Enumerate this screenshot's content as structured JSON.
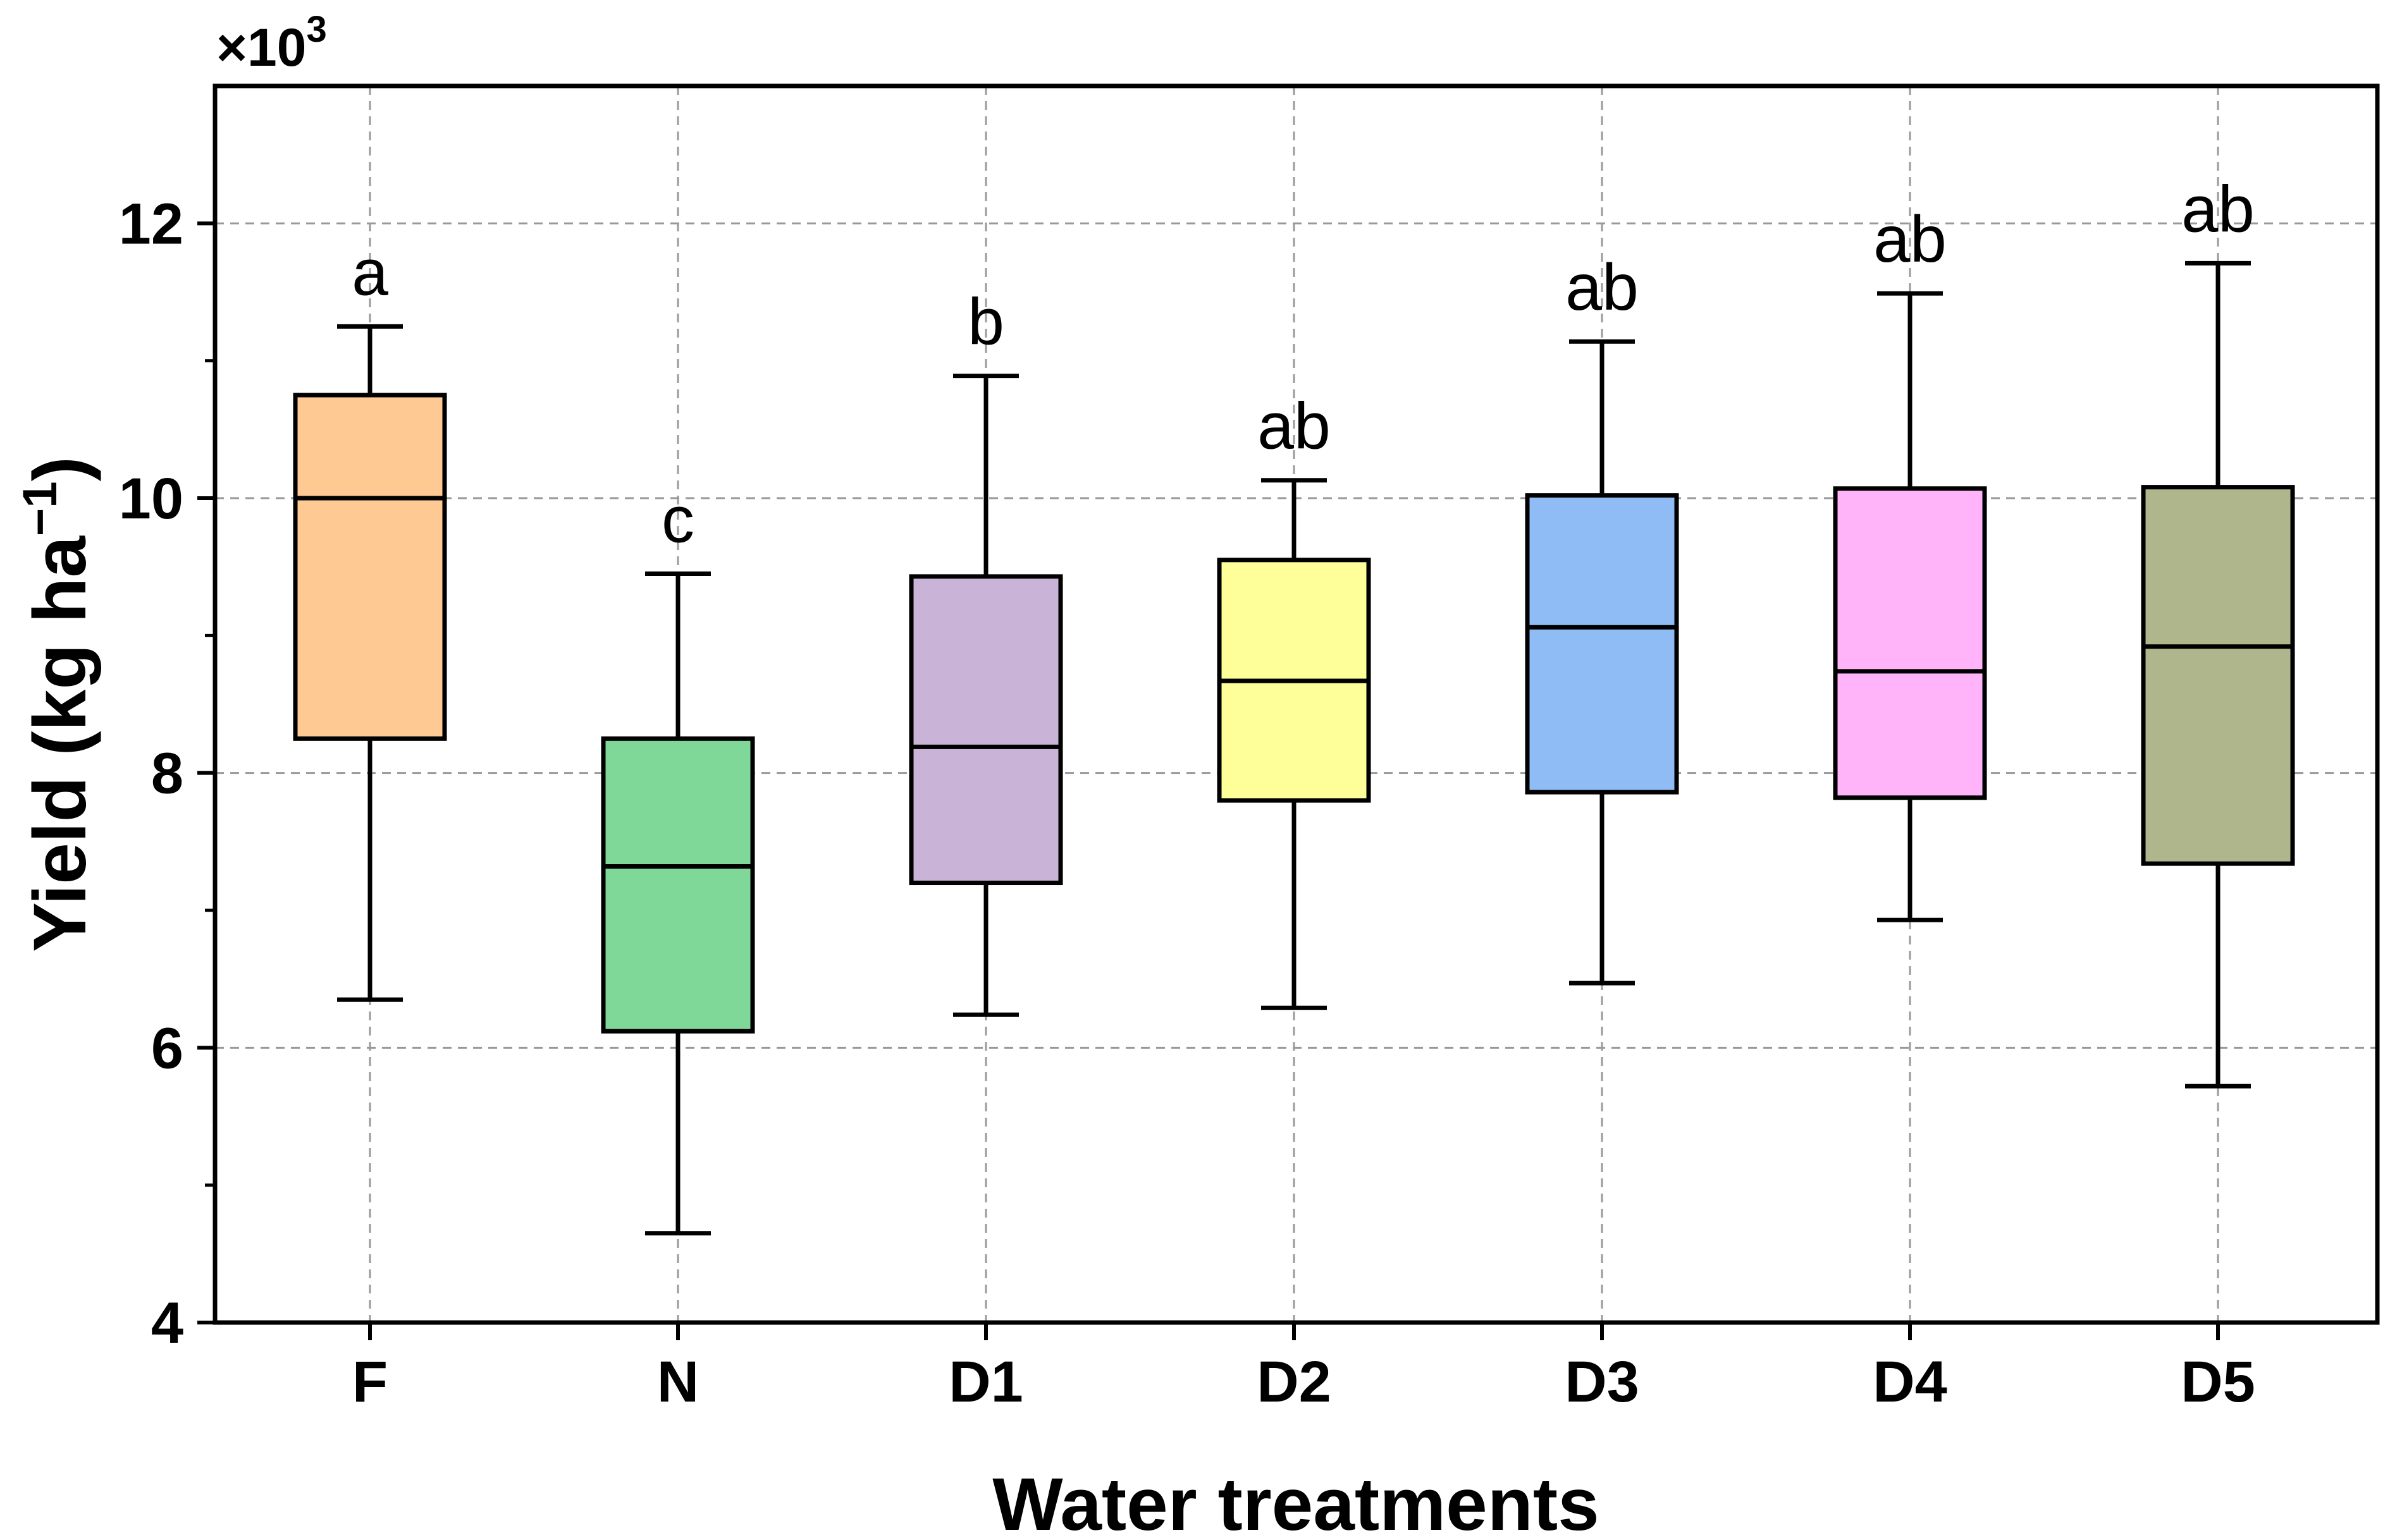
{
  "chart_data": {
    "type": "box",
    "title": "",
    "xlabel": "Water treatments",
    "ylabel": {
      "main": "Yield (kg ha",
      "superscript": "−1",
      "close": ")"
    },
    "y_multiplier": {
      "prefix": "×10",
      "exponent": "3"
    },
    "ylim": [
      4,
      13
    ],
    "y_ticks": [
      4,
      6,
      8,
      10,
      12
    ],
    "y_tick_labels": [
      "4",
      "6",
      "8",
      "10",
      "12"
    ],
    "y_minor_ticks": [
      5,
      7,
      9,
      11
    ],
    "grid": true,
    "categories": [
      "F",
      "N",
      "D1",
      "D2",
      "D3",
      "D4",
      "D5"
    ],
    "boxes": [
      {
        "category": "F",
        "min": 6.35,
        "q1": 8.25,
        "median": 10.0,
        "q3": 10.75,
        "max": 11.25,
        "significance": "a",
        "color": "#FFC993"
      },
      {
        "category": "N",
        "min": 4.65,
        "q1": 6.12,
        "median": 7.32,
        "q3": 8.25,
        "max": 9.45,
        "significance": "c",
        "color": "#7FD898"
      },
      {
        "category": "D1",
        "min": 6.24,
        "q1": 7.2,
        "median": 8.19,
        "q3": 9.43,
        "max": 10.89,
        "significance": "b",
        "color": "#C9B4D8"
      },
      {
        "category": "D2",
        "min": 6.29,
        "q1": 7.8,
        "median": 8.67,
        "q3": 9.55,
        "max": 10.13,
        "significance": "ab",
        "color": "#FFFF9A"
      },
      {
        "category": "D3",
        "min": 6.47,
        "q1": 7.86,
        "median": 9.06,
        "q3": 10.02,
        "max": 11.14,
        "significance": "ab",
        "color": "#8FBCF4"
      },
      {
        "category": "D4",
        "min": 6.93,
        "q1": 7.82,
        "median": 8.74,
        "q3": 10.07,
        "max": 11.49,
        "significance": "ab",
        "color": "#FFB4FA"
      },
      {
        "category": "D5",
        "min": 5.72,
        "q1": 7.34,
        "median": 8.92,
        "q3": 10.08,
        "max": 11.71,
        "significance": "ab",
        "color": "#B0B68C"
      }
    ]
  },
  "colors": {
    "axis": "#000000",
    "grid": "#999999",
    "background": "#ffffff"
  }
}
